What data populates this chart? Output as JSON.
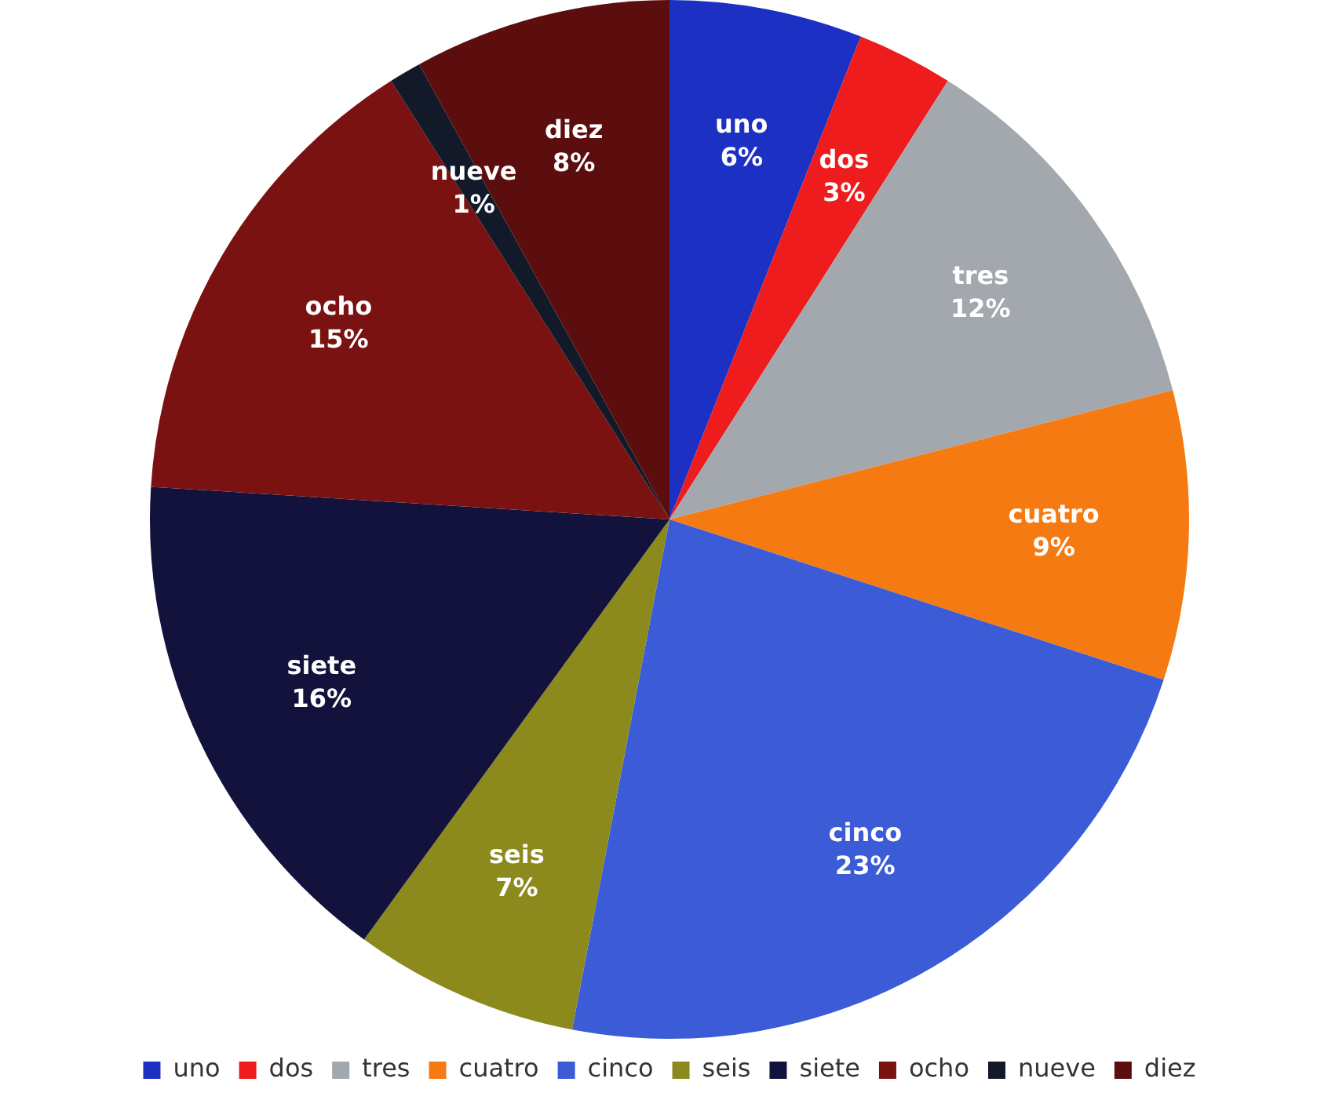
{
  "chart_data": {
    "type": "pie",
    "categories": [
      "uno",
      "dos",
      "tres",
      "cuatro",
      "cinco",
      "seis",
      "siete",
      "ocho",
      "nueve",
      "diez"
    ],
    "values": [
      6,
      3,
      12,
      9,
      23,
      7,
      16,
      15,
      1,
      8
    ],
    "colors": [
      "#1c30c4",
      "#ee1c1c",
      "#a3a7ae",
      "#f57a12",
      "#3b5cd6",
      "#8c8a1c",
      "#12123c",
      "#7a1212",
      "#121a2a",
      "#5c0e0e"
    ],
    "value_labels": [
      "6%",
      "3%",
      "12%",
      "9%",
      "23%",
      "7%",
      "16%",
      "15%",
      "1%",
      "8%"
    ],
    "legend": "bottom"
  }
}
